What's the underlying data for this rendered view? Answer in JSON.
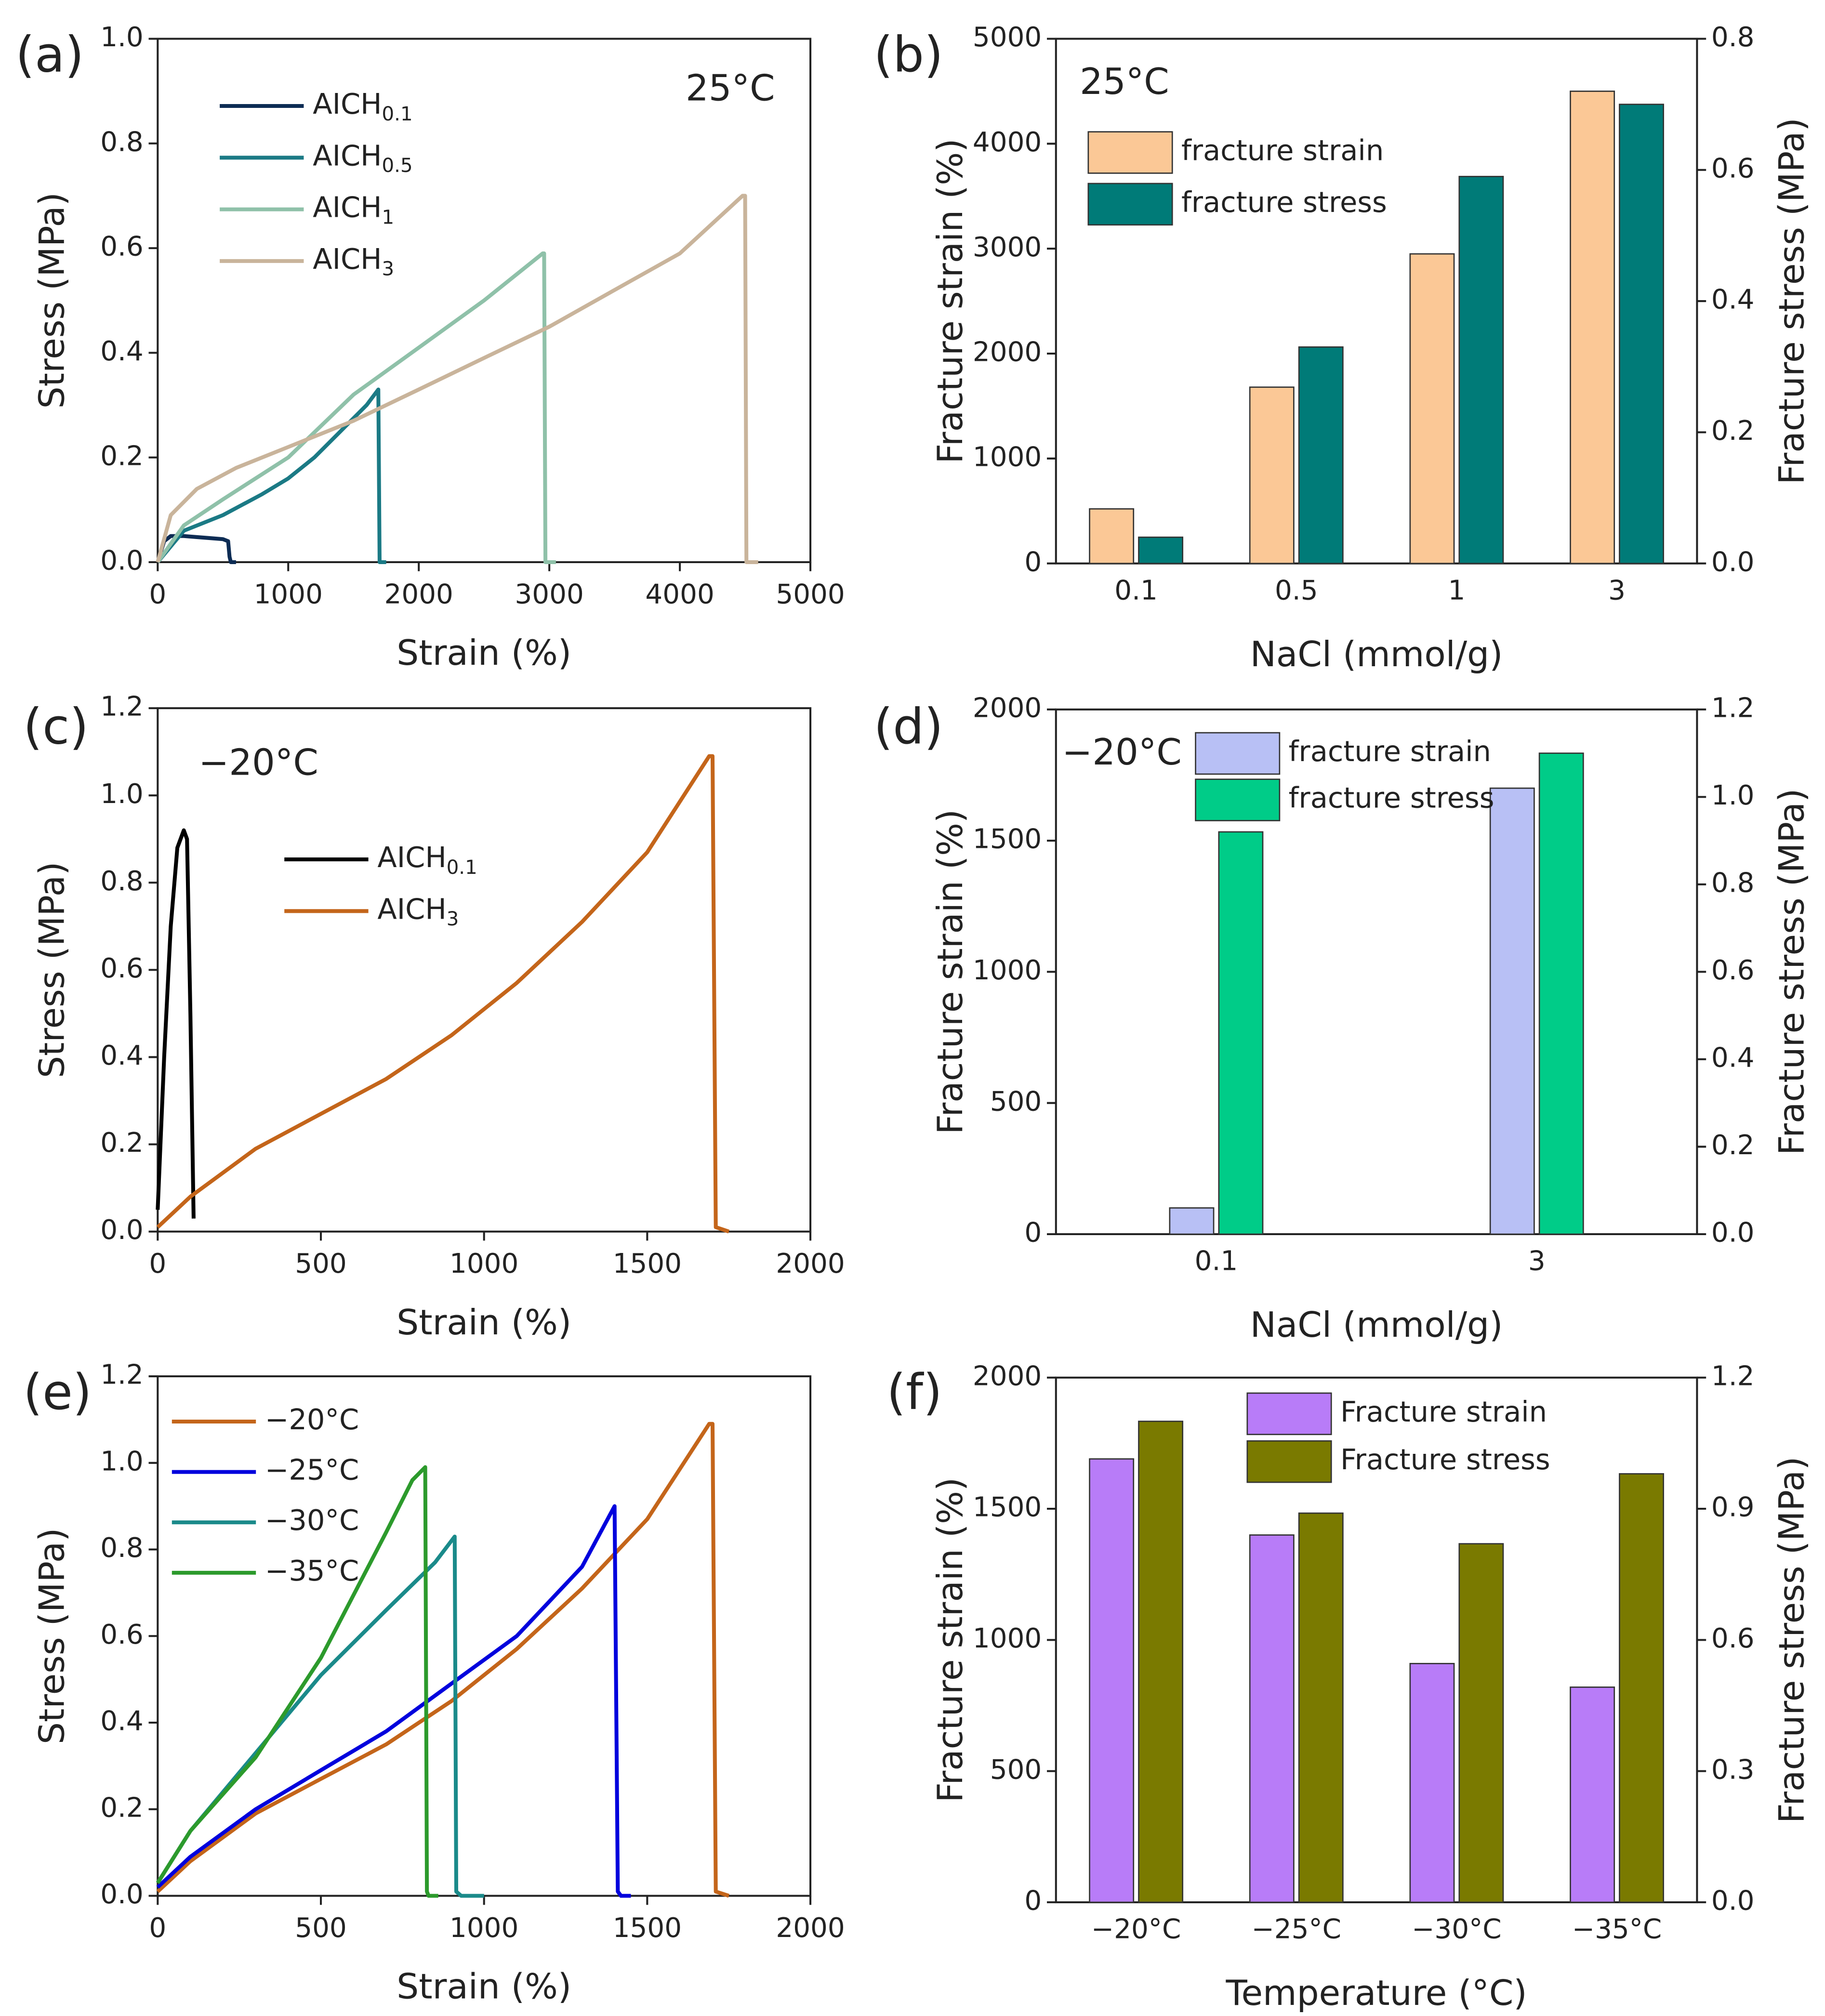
{
  "chart_data": [
    {
      "type": "line",
      "panel_label": "(a)",
      "annotation": "25°C",
      "xlabel": "Strain (%)",
      "ylabel": "Stress (MPa)",
      "xlim": [
        0,
        5000
      ],
      "xticks": [
        0,
        1000,
        2000,
        3000,
        4000,
        5000
      ],
      "ylim": [
        0,
        1
      ],
      "yticks": [
        {
          "value": 0,
          "label": "0.0"
        },
        0.2,
        0.4,
        0.6,
        0.8,
        {
          "value": 1,
          "label": "1.0"
        }
      ],
      "series": [
        {
          "name": "AICH",
          "subscript": "0.1",
          "color": "#0d2c54",
          "x": [
            0,
            50,
            100,
            200,
            300,
            400,
            500,
            540,
            550,
            560,
            600
          ],
          "values": [
            0,
            0.04,
            0.05,
            0.05,
            0.048,
            0.046,
            0.044,
            0.04,
            0.01,
            0,
            0
          ]
        },
        {
          "name": "AICH",
          "subscript": "0.5",
          "color": "#1b7a85",
          "x": [
            0,
            200,
            500,
            800,
            1000,
            1200,
            1400,
            1600,
            1690,
            1700,
            1710,
            1750
          ],
          "values": [
            0,
            0.06,
            0.09,
            0.13,
            0.16,
            0.2,
            0.25,
            0.3,
            0.33,
            0,
            0,
            0
          ]
        },
        {
          "name": "AICH",
          "subscript": "1",
          "color": "#8fc1a9",
          "x": [
            0,
            200,
            500,
            1000,
            1500,
            2000,
            2500,
            2950,
            2960,
            2970,
            3050
          ],
          "values": [
            0,
            0.07,
            0.12,
            0.2,
            0.32,
            0.41,
            0.5,
            0.59,
            0.59,
            0,
            0
          ]
        },
        {
          "name": "AICH",
          "subscript": "3",
          "color": "#c9b49b",
          "x": [
            0,
            100,
            300,
            600,
            1000,
            1500,
            2000,
            2500,
            3000,
            3500,
            4000,
            4480,
            4500,
            4510,
            4600
          ],
          "values": [
            0,
            0.09,
            0.14,
            0.18,
            0.22,
            0.27,
            0.33,
            0.39,
            0.45,
            0.52,
            0.59,
            0.7,
            0.7,
            0,
            0
          ]
        }
      ]
    },
    {
      "type": "bar",
      "panel_label": "(b)",
      "annotation": "25°C",
      "xlabel": "NaCl (mmol/g)",
      "ylabel": "Fracture strain (%)",
      "y2label": "Fracture stress (MPa)",
      "categories": [
        "0.1",
        "0.5",
        "1",
        "3"
      ],
      "ylim": [
        0,
        5000
      ],
      "yticks": [
        0,
        1000,
        2000,
        3000,
        4000,
        5000
      ],
      "y2lim": [
        0,
        0.8
      ],
      "y2ticks": [
        {
          "value": 0,
          "label": "0.0"
        },
        0.2,
        0.4,
        0.6,
        0.8
      ],
      "series": [
        {
          "name": "fracture strain",
          "color": "#fbc896",
          "values": [
            520,
            1680,
            2950,
            4500
          ]
        },
        {
          "name": "fracture stress",
          "color": "#007b78",
          "axis": "y2",
          "values": [
            0.04,
            0.33,
            0.59,
            0.7
          ]
        }
      ]
    },
    {
      "type": "line",
      "panel_label": "(c)",
      "annotation": "−20°C",
      "xlabel": "Strain (%)",
      "ylabel": "Stress (MPa)",
      "xlim": [
        0,
        2000
      ],
      "xticks": [
        0,
        500,
        1000,
        1500,
        2000
      ],
      "ylim": [
        0,
        1.2
      ],
      "yticks": [
        {
          "value": 0,
          "label": "0.0"
        },
        0.2,
        0.4,
        0.6,
        0.8,
        {
          "value": 1,
          "label": "1.0"
        },
        1.2
      ],
      "series": [
        {
          "name": "AICH",
          "subscript": "0.1",
          "color": "#000000",
          "x": [
            0,
            20,
            40,
            60,
            80,
            90,
            100,
            110
          ],
          "values": [
            0.05,
            0.4,
            0.7,
            0.88,
            0.92,
            0.9,
            0.5,
            0.03
          ]
        },
        {
          "name": "AICH",
          "subscript": "3",
          "color": "#c4651a",
          "x": [
            0,
            100,
            300,
            500,
            700,
            900,
            1100,
            1300,
            1500,
            1690,
            1700,
            1710,
            1750
          ],
          "values": [
            0.01,
            0.08,
            0.19,
            0.27,
            0.35,
            0.45,
            0.57,
            0.71,
            0.87,
            1.09,
            1.09,
            0.01,
            0
          ]
        }
      ]
    },
    {
      "type": "bar",
      "panel_label": "(d)",
      "annotation": "−20°C",
      "xlabel": "NaCl (mmol/g)",
      "ylabel": "Fracture strain (%)",
      "y2label": "Fracture stress (MPa)",
      "categories": [
        "0.1",
        "3"
      ],
      "ylim": [
        0,
        2000
      ],
      "yticks": [
        0,
        500,
        1000,
        1500,
        2000
      ],
      "y2lim": [
        0,
        1.2
      ],
      "y2ticks": [
        {
          "value": 0,
          "label": "0.0"
        },
        0.2,
        0.4,
        0.6,
        0.8,
        {
          "value": 1,
          "label": "1.0"
        },
        1.2
      ],
      "series": [
        {
          "name": "fracture strain",
          "color": "#b8c0f5",
          "values": [
            100,
            1700
          ]
        },
        {
          "name": "fracture stress",
          "color": "#00cc88",
          "axis": "y2",
          "values": [
            0.92,
            1.1
          ]
        }
      ]
    },
    {
      "type": "line",
      "panel_label": "(e)",
      "xlabel": "Strain (%)",
      "ylabel": "Stress (MPa)",
      "xlim": [
        0,
        2000
      ],
      "xticks": [
        0,
        500,
        1000,
        1500,
        2000
      ],
      "ylim": [
        0,
        1.2
      ],
      "yticks": [
        {
          "value": 0,
          "label": "0.0"
        },
        0.2,
        0.4,
        0.6,
        0.8,
        {
          "value": 1,
          "label": "1.0"
        },
        1.2
      ],
      "series": [
        {
          "name": "−20°C",
          "color": "#c4651a",
          "x": [
            0,
            100,
            300,
            500,
            700,
            900,
            1100,
            1300,
            1500,
            1690,
            1700,
            1710,
            1750
          ],
          "values": [
            0.01,
            0.08,
            0.19,
            0.27,
            0.35,
            0.45,
            0.57,
            0.71,
            0.87,
            1.09,
            1.09,
            0.01,
            0
          ]
        },
        {
          "name": "−25°C",
          "color": "#0000dd",
          "x": [
            0,
            100,
            300,
            500,
            700,
            900,
            1100,
            1300,
            1400,
            1410,
            1420,
            1450
          ],
          "values": [
            0.02,
            0.09,
            0.2,
            0.29,
            0.38,
            0.49,
            0.6,
            0.76,
            0.9,
            0.01,
            0,
            0
          ]
        },
        {
          "name": "−30°C",
          "color": "#1a8a8a",
          "x": [
            0,
            100,
            300,
            500,
            700,
            850,
            910,
            915,
            930,
            1000
          ],
          "values": [
            0.03,
            0.15,
            0.33,
            0.51,
            0.66,
            0.77,
            0.83,
            0.01,
            0,
            0
          ]
        },
        {
          "name": "−35°C",
          "color": "#2c9a2c",
          "x": [
            0,
            100,
            300,
            500,
            700,
            780,
            820,
            825,
            830,
            860
          ],
          "values": [
            0.03,
            0.15,
            0.32,
            0.55,
            0.84,
            0.96,
            0.99,
            0.01,
            0,
            0
          ]
        }
      ]
    },
    {
      "type": "bar",
      "panel_label": "(f)",
      "xlabel": "Temperature (°C)",
      "ylabel": "Fracture strain (%)",
      "y2label": "Fracture stress (MPa)",
      "categories": [
        "−20°C",
        "−25°C",
        "−30°C",
        "−35°C"
      ],
      "ylim": [
        0,
        2000
      ],
      "yticks": [
        0,
        500,
        1000,
        1500,
        2000
      ],
      "y2lim": [
        0,
        1.2
      ],
      "y2ticks": [
        {
          "value": 0,
          "label": "0.0"
        },
        0.3,
        0.6,
        0.9,
        1.2
      ],
      "series": [
        {
          "name": "Fracture strain",
          "color": "#b87cf8",
          "values": [
            1690,
            1400,
            910,
            820
          ]
        },
        {
          "name": "Fracture stress",
          "color": "#7a7a00",
          "axis": "y2",
          "values": [
            1.1,
            0.89,
            0.82,
            0.98
          ]
        }
      ]
    }
  ]
}
